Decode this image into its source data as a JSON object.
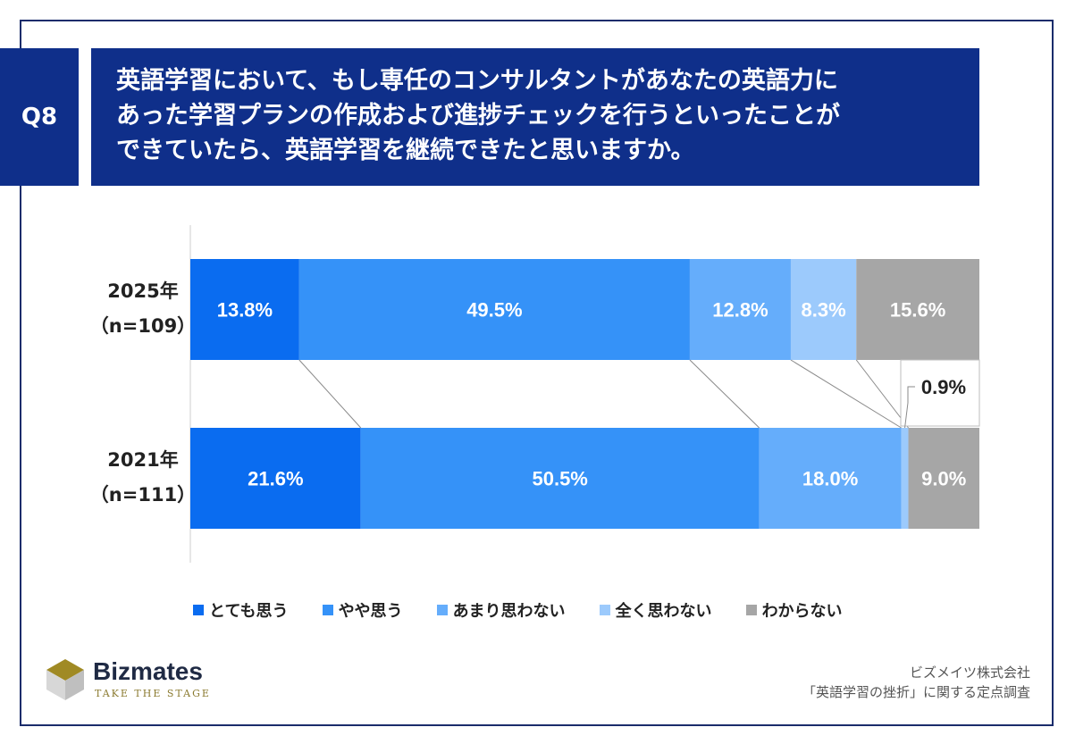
{
  "question": {
    "badge": "Q8",
    "text": "英語学習において、もし専任のコンサルタントがあなたの英語力に\nあった学習プランの作成および進捗チェックを行うといったことが\nできていたら、英語学習を継続できたと思いますか。"
  },
  "chart_data": {
    "type": "bar",
    "stacked": true,
    "orientation": "horizontal",
    "unit": "%",
    "categories": [
      {
        "year": "2025年",
        "n": "（n=109）"
      },
      {
        "year": "2021年",
        "n": "（n=111）"
      }
    ],
    "series": [
      {
        "name": "とても思う",
        "color": "#0a6cf0",
        "values": [
          13.8,
          21.6
        ],
        "labels": [
          "13.8%",
          "21.6%"
        ]
      },
      {
        "name": "やや思う",
        "color": "#3592f8",
        "values": [
          49.5,
          50.5
        ],
        "labels": [
          "49.5%",
          "50.5%"
        ]
      },
      {
        "name": "あまり思わない",
        "color": "#65adfb",
        "values": [
          12.8,
          18.0
        ],
        "labels": [
          "12.8%",
          "18.0%"
        ]
      },
      {
        "name": "全く思わない",
        "color": "#9ccafc",
        "values": [
          8.3,
          0.9
        ],
        "labels": [
          "8.3%",
          "0.9%"
        ]
      },
      {
        "name": "わからない",
        "color": "#a6a6a6",
        "values": [
          15.6,
          9.0
        ],
        "labels": [
          "15.6%",
          "9.0%"
        ]
      }
    ],
    "xlim": [
      0,
      100
    ],
    "legend_position": "bottom"
  },
  "brand": {
    "name": "Bizmates",
    "tagline": "TAKE THE STAGE"
  },
  "source": {
    "line1": "ビズメイツ株式会社",
    "line2": "「英語学習の挫折」に関する定点調査"
  }
}
